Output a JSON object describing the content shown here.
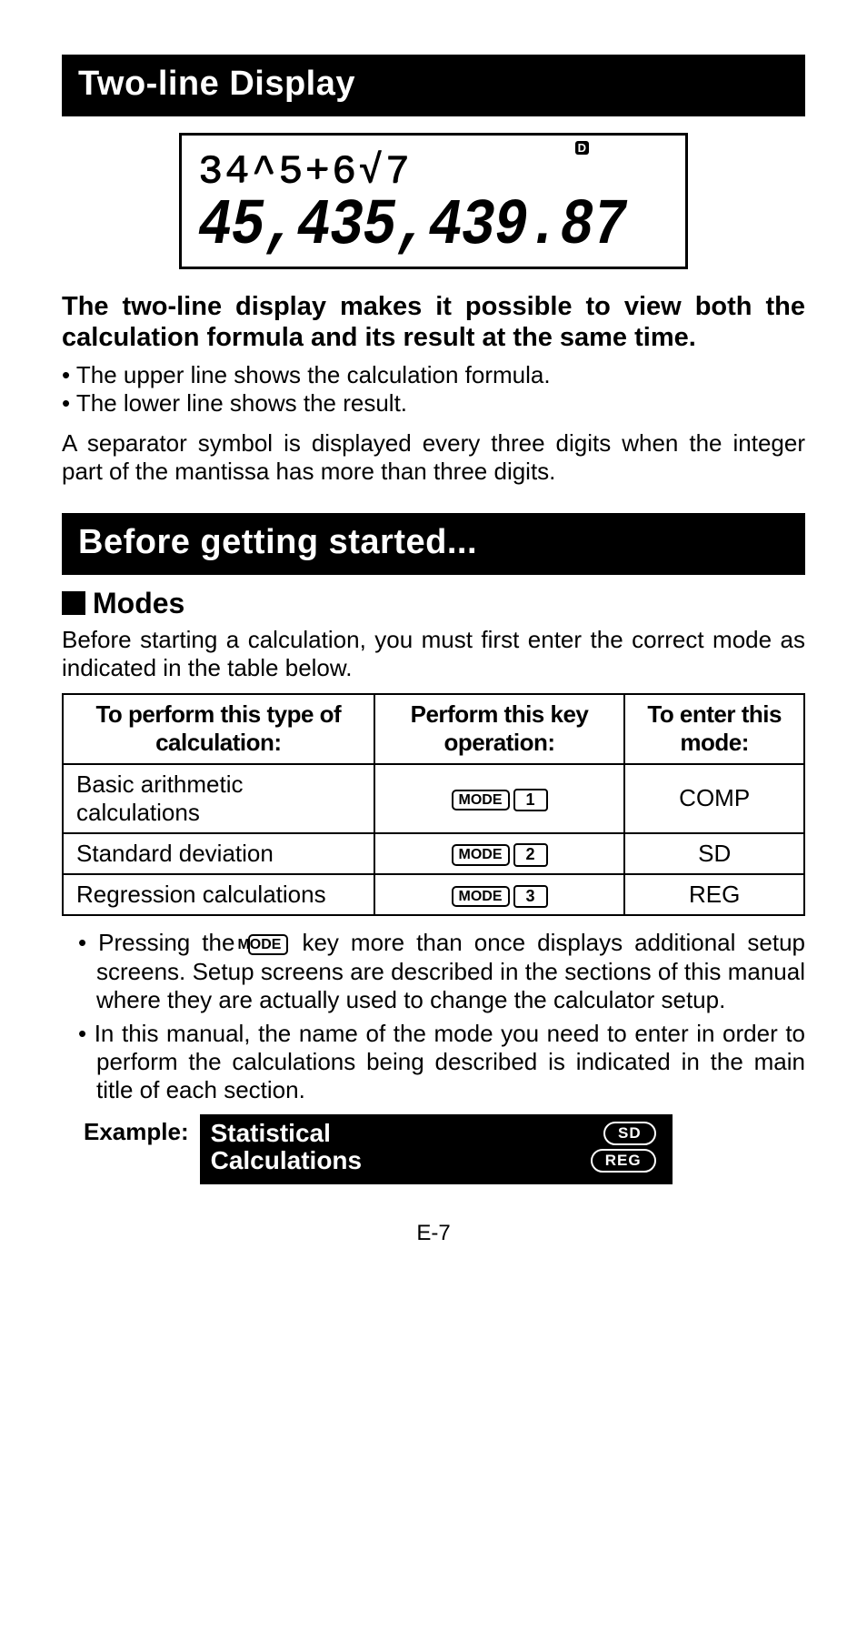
{
  "section1": {
    "title": "Two-line Display",
    "lcd": {
      "indicator": "D",
      "formula": "34^5+6√7",
      "result": "45,435,439.87"
    },
    "intro_bold": "The two-line display makes it possible to view both the calculation formula and its result at the same time.",
    "bullets": [
      "The upper line shows the calculation formula.",
      "The lower line shows the result."
    ],
    "para": "A separator symbol is displayed every three digits when the integer part of the mantissa has more than three digits."
  },
  "section2": {
    "title": "Before getting started...",
    "modes_heading": "Modes",
    "modes_intro": "Before starting a calculation, you must first enter the correct mode as indicated in the table below.",
    "table": {
      "headers": [
        "To perform this type of calculation:",
        "Perform this key operation:",
        "To enter this mode:"
      ],
      "rows": [
        {
          "calc": "Basic arithmetic calculations",
          "keynum": "1",
          "mode": "COMP"
        },
        {
          "calc": "Standard deviation",
          "keynum": "2",
          "mode": "SD"
        },
        {
          "calc": "Regression calculations",
          "keynum": "3",
          "mode": "REG"
        }
      ],
      "modekey": "MODE"
    },
    "post_bullets": [
      "Pressing the MODE key more than once displays additional setup screens. Setup screens are described in the sections of this manual where they are actually used to change the calculator setup.",
      "In this manual, the name of the mode you need to enter in order to perform the calculations being described is indicated in the main title of each section."
    ],
    "post_bullet_1_pre": "Pressing the ",
    "post_bullet_1_post": " key more than once displays additional setup screens. Setup screens are described in the sections of this manual where they are actually used to change the calculator setup.",
    "example": {
      "label": "Example:",
      "title": "Statistical Calculations",
      "badges": [
        "SD",
        "REG"
      ]
    }
  },
  "pagenum": "E-7",
  "colors": {
    "black": "#000000",
    "white": "#ffffff"
  }
}
